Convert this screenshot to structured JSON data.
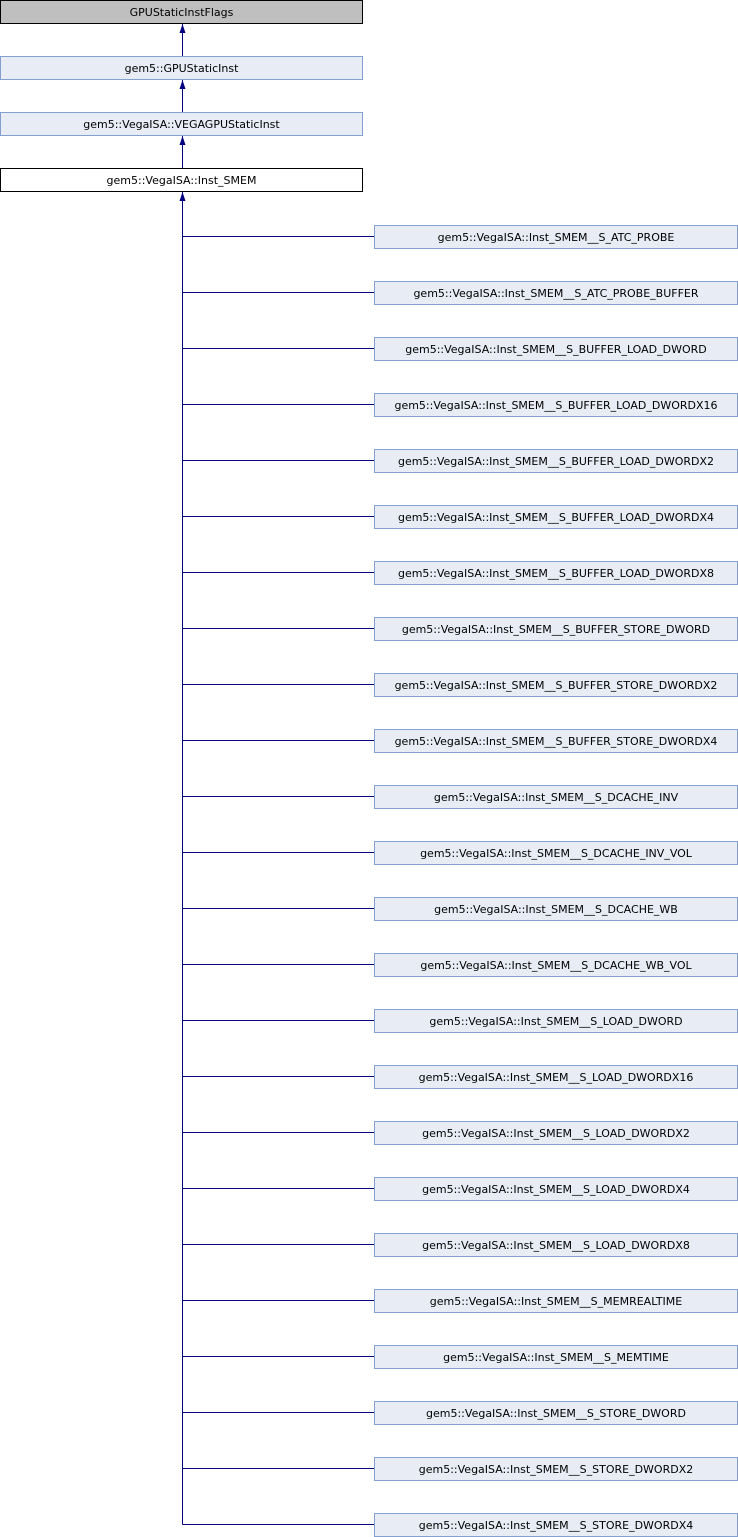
{
  "diagram": {
    "edge_color": "#000080",
    "ancestors": [
      {
        "label": "GPUStaticInstFlags"
      },
      {
        "label": "gem5::GPUStaticInst"
      },
      {
        "label": "gem5::VegaISA::VEGAGPUStaticInst"
      }
    ],
    "current": {
      "label": "gem5::VegaISA::Inst_SMEM"
    },
    "children": [
      {
        "label": "gem5::VegaISA::Inst_SMEM__S_ATC_PROBE"
      },
      {
        "label": "gem5::VegaISA::Inst_SMEM__S_ATC_PROBE_BUFFER"
      },
      {
        "label": "gem5::VegaISA::Inst_SMEM__S_BUFFER_LOAD_DWORD"
      },
      {
        "label": "gem5::VegaISA::Inst_SMEM__S_BUFFER_LOAD_DWORDX16"
      },
      {
        "label": "gem5::VegaISA::Inst_SMEM__S_BUFFER_LOAD_DWORDX2"
      },
      {
        "label": "gem5::VegaISA::Inst_SMEM__S_BUFFER_LOAD_DWORDX4"
      },
      {
        "label": "gem5::VegaISA::Inst_SMEM__S_BUFFER_LOAD_DWORDX8"
      },
      {
        "label": "gem5::VegaISA::Inst_SMEM__S_BUFFER_STORE_DWORD"
      },
      {
        "label": "gem5::VegaISA::Inst_SMEM__S_BUFFER_STORE_DWORDX2"
      },
      {
        "label": "gem5::VegaISA::Inst_SMEM__S_BUFFER_STORE_DWORDX4"
      },
      {
        "label": "gem5::VegaISA::Inst_SMEM__S_DCACHE_INV"
      },
      {
        "label": "gem5::VegaISA::Inst_SMEM__S_DCACHE_INV_VOL"
      },
      {
        "label": "gem5::VegaISA::Inst_SMEM__S_DCACHE_WB"
      },
      {
        "label": "gem5::VegaISA::Inst_SMEM__S_DCACHE_WB_VOL"
      },
      {
        "label": "gem5::VegaISA::Inst_SMEM__S_LOAD_DWORD"
      },
      {
        "label": "gem5::VegaISA::Inst_SMEM__S_LOAD_DWORDX16"
      },
      {
        "label": "gem5::VegaISA::Inst_SMEM__S_LOAD_DWORDX2"
      },
      {
        "label": "gem5::VegaISA::Inst_SMEM__S_LOAD_DWORDX4"
      },
      {
        "label": "gem5::VegaISA::Inst_SMEM__S_LOAD_DWORDX8"
      },
      {
        "label": "gem5::VegaISA::Inst_SMEM__S_MEMREALTIME"
      },
      {
        "label": "gem5::VegaISA::Inst_SMEM__S_MEMTIME"
      },
      {
        "label": "gem5::VegaISA::Inst_SMEM__S_STORE_DWORD"
      },
      {
        "label": "gem5::VegaISA::Inst_SMEM__S_STORE_DWORDX2"
      },
      {
        "label": "gem5::VegaISA::Inst_SMEM__S_STORE_DWORDX4"
      }
    ]
  }
}
